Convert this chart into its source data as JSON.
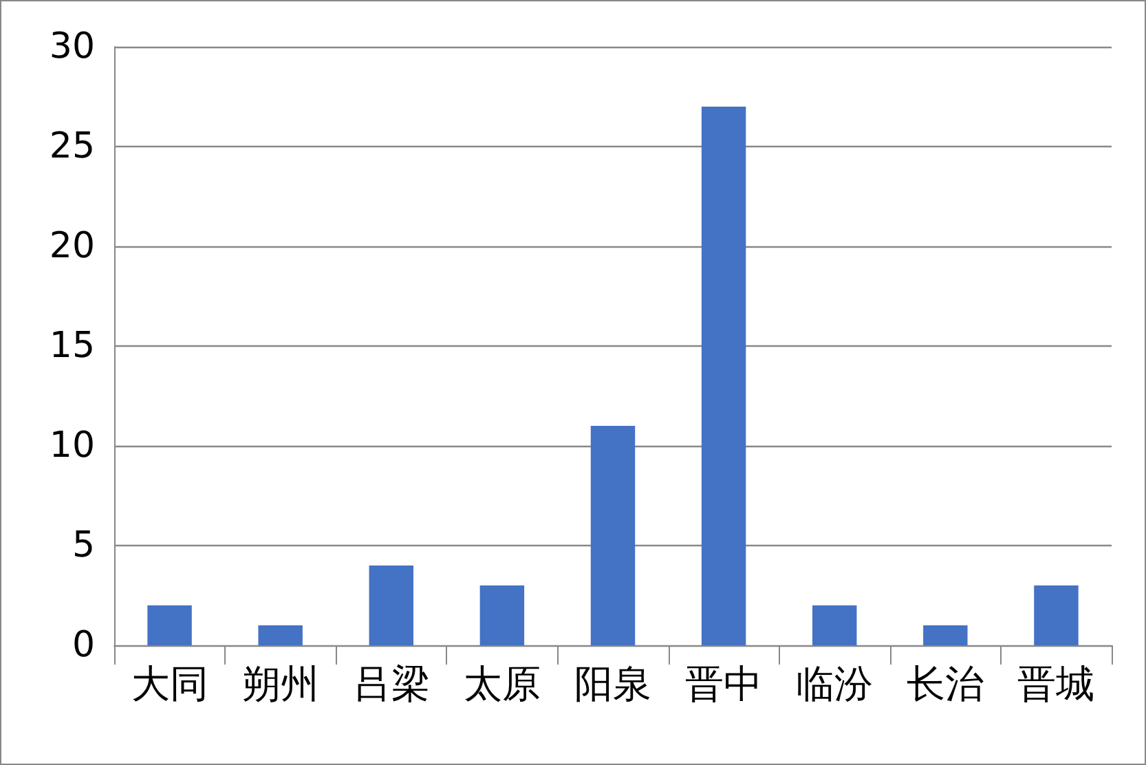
{
  "chart_data": {
    "type": "bar",
    "categories": [
      "大同",
      "朔州",
      "吕梁",
      "太原",
      "阳泉",
      "晋中",
      "临汾",
      "长治",
      "晋城"
    ],
    "values": [
      2,
      1,
      4,
      3,
      11,
      27,
      2,
      1,
      3
    ],
    "color": "#4472c4",
    "ylim": [
      0,
      30
    ],
    "yticks": [
      0,
      5,
      10,
      15,
      20,
      25,
      30
    ],
    "grid": "y"
  }
}
